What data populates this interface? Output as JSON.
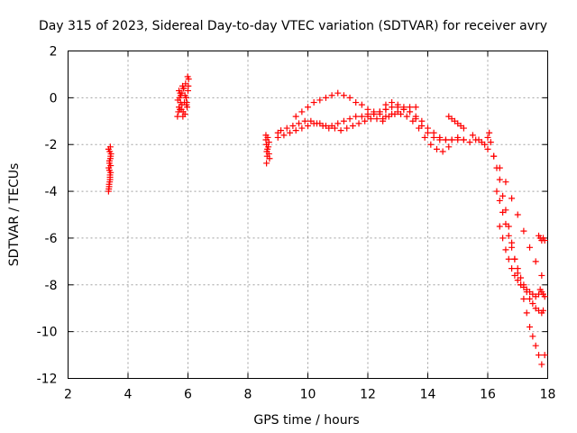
{
  "chart_data": {
    "type": "scatter",
    "title": "Day 315 of 2023, Sidereal Day-to-day VTEC variation (SDTVAR) for receiver avry",
    "xlabel": "GPS time / hours",
    "ylabel": "SDTVAR / TECUs",
    "xlim": [
      2,
      18
    ],
    "ylim": [
      -12,
      2
    ],
    "xticks": [
      "2",
      "4",
      "6",
      "8",
      "10",
      "12",
      "14",
      "16",
      "18"
    ],
    "yticks": [
      "2",
      "0",
      "-2",
      "-4",
      "-6",
      "-8",
      "-10",
      "-12"
    ],
    "grid": true,
    "marker": "+",
    "color": "#ff0000",
    "series": [
      {
        "name": "SDTVAR",
        "x": [
          3.35,
          3.37,
          3.39,
          3.4,
          3.42,
          3.36,
          3.38,
          3.41,
          3.43,
          3.35,
          3.38,
          3.4,
          3.42,
          3.37,
          3.39,
          3.41,
          3.36,
          3.4,
          3.38,
          3.42,
          5.65,
          5.7,
          5.75,
          5.8,
          5.85,
          5.9,
          5.95,
          6.0,
          6.02,
          5.68,
          5.72,
          5.78,
          5.82,
          5.88,
          5.92,
          5.97,
          5.66,
          5.74,
          5.84,
          5.94,
          5.99,
          5.7,
          5.8,
          5.9,
          5.76,
          5.86,
          5.96,
          6.01,
          5.73,
          5.83,
          8.6,
          8.62,
          8.65,
          8.7,
          8.72,
          8.6,
          8.63,
          8.68,
          8.7,
          8.62,
          8.66,
          8.64,
          9.0,
          9.1,
          9.3,
          9.5,
          9.7,
          9.9,
          10.1,
          10.3,
          10.5,
          10.7,
          10.9,
          11.1,
          11.3,
          11.5,
          11.7,
          11.9,
          12.1,
          12.3,
          12.5,
          9.0,
          9.2,
          9.4,
          9.6,
          9.8,
          10.0,
          10.2,
          10.4,
          10.6,
          10.8,
          11.0,
          11.2,
          11.4,
          11.6,
          11.8,
          12.0,
          12.2,
          12.4,
          12.6,
          9.6,
          9.8,
          10.0,
          10.2,
          10.4,
          10.6,
          10.8,
          11.0,
          11.2,
          11.4,
          11.6,
          11.8,
          12.0,
          12.2,
          12.4,
          12.6,
          12.8,
          13.0,
          13.2,
          13.4,
          13.6,
          12.0,
          12.2,
          12.4,
          12.6,
          12.8,
          13.0,
          13.2,
          13.4,
          13.6,
          13.8,
          14.0,
          14.2,
          14.4,
          14.6,
          14.8,
          15.0,
          15.2,
          12.5,
          12.7,
          12.9,
          13.1,
          13.3,
          13.5,
          13.7,
          13.9,
          14.1,
          14.3,
          14.5,
          14.7,
          12.6,
          12.8,
          13.0,
          13.2,
          13.4,
          13.6,
          13.8,
          14.0,
          14.2,
          14.4,
          14.6,
          14.8,
          15.0,
          15.2,
          15.4,
          15.6,
          14.7,
          14.8,
          14.9,
          15.0,
          15.1,
          15.2,
          15.5,
          15.7,
          15.8,
          15.9,
          16.0,
          16.05,
          16.1,
          16.2,
          16.3,
          16.4,
          16.5,
          16.6,
          16.7,
          16.8,
          16.9,
          17.0,
          17.1,
          17.2,
          17.3,
          17.4,
          17.5,
          17.6,
          17.7,
          17.8,
          17.9,
          16.0,
          16.2,
          16.4,
          16.6,
          16.8,
          17.0,
          17.2,
          17.4,
          17.6,
          17.8,
          16.3,
          16.4,
          16.5,
          16.6,
          16.7,
          16.8,
          16.9,
          17.0,
          17.1,
          17.2,
          17.3,
          17.4,
          17.5,
          17.6,
          17.7,
          17.8,
          17.85,
          16.4,
          16.5,
          16.6,
          16.7,
          16.8,
          16.9,
          17.0,
          17.1,
          17.2,
          17.3,
          17.4,
          17.5,
          17.6,
          17.7,
          17.75,
          17.8,
          17.85,
          17.9,
          17.7,
          17.75,
          17.8,
          17.85,
          17.9
        ],
        "y": [
          -4.0,
          -3.8,
          -3.6,
          -3.4,
          -3.2,
          -3.0,
          -2.8,
          -2.6,
          -2.4,
          -2.2,
          -3.1,
          -3.5,
          -2.9,
          -3.7,
          -2.3,
          -2.1,
          -3.9,
          -3.3,
          -2.7,
          -2.5,
          -0.8,
          -0.4,
          -0.2,
          0.2,
          0.4,
          0.1,
          -0.3,
          0.3,
          0.8,
          -0.6,
          0.0,
          -0.5,
          0.5,
          -0.2,
          0.6,
          -0.4,
          -0.1,
          0.2,
          -0.6,
          0.0,
          0.9,
          0.3,
          -0.3,
          -0.7,
          0.1,
          0.4,
          -0.2,
          0.5,
          -0.5,
          -0.8,
          -1.8,
          -2.0,
          -2.2,
          -2.4,
          -2.6,
          -1.6,
          -2.3,
          -2.1,
          -1.9,
          -2.8,
          -1.7,
          -2.5,
          -1.5,
          -1.4,
          -1.3,
          -1.2,
          -1.1,
          -1.0,
          -1.0,
          -1.1,
          -1.2,
          -1.3,
          -1.3,
          -1.4,
          -1.3,
          -1.2,
          -1.1,
          -1.0,
          -0.9,
          -0.9,
          -1.0,
          -1.7,
          -1.6,
          -1.5,
          -1.4,
          -1.3,
          -1.2,
          -1.1,
          -1.1,
          -1.2,
          -1.2,
          -1.1,
          -1.0,
          -0.9,
          -0.8,
          -0.8,
          -0.7,
          -0.7,
          -0.6,
          -0.5,
          -0.8,
          -0.6,
          -0.4,
          -0.2,
          -0.1,
          0.0,
          0.1,
          0.2,
          0.1,
          0.0,
          -0.2,
          -0.3,
          -0.5,
          -0.6,
          -0.7,
          -0.8,
          -0.7,
          -0.6,
          -0.5,
          -0.4,
          -0.4,
          -0.8,
          -0.7,
          -0.6,
          -0.5,
          -0.4,
          -0.4,
          -0.5,
          -0.6,
          -0.8,
          -1.0,
          -1.3,
          -1.5,
          -1.7,
          -1.8,
          -1.8,
          -1.8,
          -1.8,
          -0.9,
          -0.8,
          -0.7,
          -0.7,
          -0.8,
          -1.0,
          -1.3,
          -1.7,
          -2.0,
          -2.2,
          -2.3,
          -2.1,
          -0.3,
          -0.2,
          -0.3,
          -0.4,
          -0.6,
          -0.9,
          -1.2,
          -1.5,
          -1.7,
          -1.8,
          -1.8,
          -1.8,
          -1.7,
          -1.8,
          -1.9,
          -1.8,
          -0.8,
          -0.9,
          -1.0,
          -1.1,
          -1.2,
          -1.3,
          -1.6,
          -1.8,
          -1.9,
          -2.0,
          -1.7,
          -1.5,
          -1.9,
          -2.5,
          -3.0,
          -3.5,
          -4.2,
          -4.8,
          -5.5,
          -6.2,
          -6.9,
          -7.5,
          -8.0,
          -8.6,
          -9.2,
          -9.8,
          -10.2,
          -10.6,
          -11.0,
          -11.4,
          -11.0,
          -2.2,
          -2.5,
          -3.0,
          -3.6,
          -4.3,
          -5.0,
          -5.7,
          -6.4,
          -7.0,
          -7.6,
          -4.0,
          -4.4,
          -4.9,
          -5.4,
          -5.9,
          -6.4,
          -6.9,
          -7.3,
          -7.7,
          -8.0,
          -8.3,
          -8.6,
          -8.8,
          -9.0,
          -9.1,
          -9.2,
          -9.1,
          -5.5,
          -6.0,
          -6.5,
          -6.9,
          -7.3,
          -7.6,
          -7.8,
          -8.0,
          -8.1,
          -8.2,
          -8.3,
          -8.4,
          -8.5,
          -8.4,
          -8.2,
          -8.3,
          -8.4,
          -8.5,
          -5.9,
          -6.0,
          -6.1,
          -6.0,
          -6.1
        ]
      }
    ]
  }
}
